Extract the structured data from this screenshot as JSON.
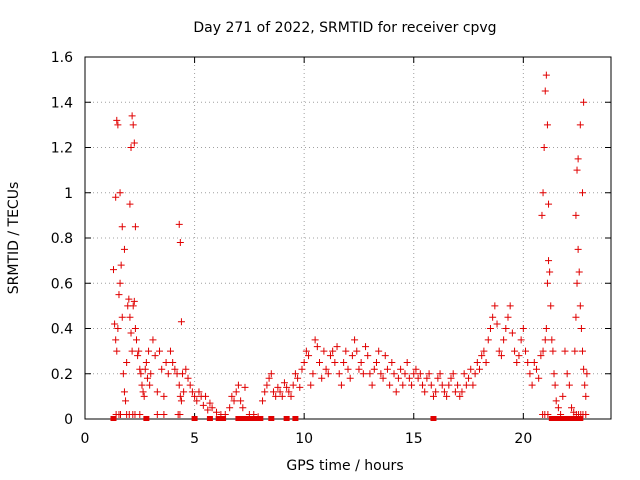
{
  "chart_data": {
    "type": "scatter",
    "title": "Day 271 of 2022, SRMTID for receiver cpvg",
    "xlabel": "GPS time / hours",
    "ylabel": "SRMTID / TECUs",
    "xlim": [
      0,
      24
    ],
    "ylim": [
      0,
      1.6
    ],
    "xticks": [
      0,
      5,
      10,
      15,
      20
    ],
    "xtick_labels": [
      "0",
      "5",
      "10",
      "15",
      "20"
    ],
    "yticks": [
      0,
      0.2,
      0.4,
      0.6,
      0.8,
      1.0,
      1.2,
      1.4,
      1.6
    ],
    "ytick_labels": [
      "0",
      "0.2",
      "0.4",
      "0.6",
      "0.8",
      "1",
      "1.2",
      "1.4",
      "1.6"
    ],
    "grid": true,
    "marker": "+",
    "color": "#e00000",
    "series": [
      {
        "name": "SRMTID",
        "x": [
          1.3,
          1.35,
          1.4,
          1.45,
          1.5,
          1.55,
          1.6,
          1.65,
          1.7,
          1.75,
          1.8,
          1.85,
          1.9,
          1.95,
          2.0,
          2.05,
          2.1,
          2.15,
          2.2,
          2.25,
          2.3,
          2.35,
          2.4,
          2.45,
          2.5,
          2.55,
          2.6,
          2.65,
          2.7,
          2.75,
          2.8,
          2.85,
          2.9,
          2.95,
          3.0,
          3.1,
          3.2,
          3.3,
          3.4,
          3.5,
          3.6,
          3.7,
          3.8,
          3.9,
          4.0,
          4.1,
          4.2,
          4.3,
          4.35,
          4.4,
          4.45,
          4.5,
          4.6,
          4.7,
          4.8,
          4.9,
          5.0,
          5.1,
          5.2,
          5.3,
          5.4,
          5.5,
          5.6,
          5.7,
          5.8,
          6.0,
          6.2,
          6.4,
          6.6,
          6.7,
          6.8,
          6.9,
          7.0,
          7.1,
          7.2,
          7.3,
          7.5,
          7.7,
          7.9,
          8.1,
          8.2,
          8.3,
          8.4,
          8.5,
          8.6,
          8.7,
          8.8,
          8.9,
          9.0,
          9.1,
          9.2,
          9.3,
          9.4,
          9.5,
          9.6,
          9.7,
          9.8,
          9.9,
          10.0,
          10.1,
          10.2,
          10.3,
          10.4,
          10.5,
          10.6,
          10.7,
          10.8,
          10.9,
          11.0,
          11.1,
          11.2,
          11.3,
          11.4,
          11.5,
          11.6,
          11.7,
          11.8,
          11.9,
          12.0,
          12.1,
          12.2,
          12.3,
          12.4,
          12.5,
          12.6,
          12.7,
          12.8,
          12.9,
          13.0,
          13.1,
          13.2,
          13.3,
          13.4,
          13.5,
          13.6,
          13.7,
          13.8,
          13.9,
          14.0,
          14.1,
          14.2,
          14.3,
          14.4,
          14.5,
          14.6,
          14.7,
          14.8,
          14.9,
          15.0,
          15.1,
          15.2,
          15.3,
          15.4,
          15.5,
          15.6,
          15.7,
          15.8,
          15.9,
          16.0,
          16.1,
          16.2,
          16.3,
          16.4,
          16.5,
          16.6,
          16.7,
          16.8,
          16.9,
          17.0,
          17.1,
          17.2,
          17.3,
          17.4,
          17.5,
          17.6,
          17.7,
          17.8,
          17.9,
          18.0,
          18.1,
          18.2,
          18.3,
          18.4,
          18.5,
          18.6,
          18.7,
          18.8,
          18.9,
          19.0,
          19.1,
          19.2,
          19.3,
          19.4,
          19.5,
          19.6,
          19.7,
          19.8,
          19.9,
          20.0,
          20.1,
          20.2,
          20.3,
          20.4,
          20.5,
          20.6,
          20.7,
          20.8,
          20.9,
          21.0,
          21.05,
          21.1,
          21.15,
          21.2,
          21.25,
          21.3,
          21.35,
          21.4,
          21.45,
          21.5,
          21.6,
          21.7,
          21.8,
          21.9,
          22.0,
          22.1,
          22.2,
          22.3,
          22.35,
          22.4,
          22.45,
          22.5,
          22.55,
          22.6,
          22.65,
          22.7,
          22.75,
          22.8,
          22.85,
          22.9,
          1.4,
          1.45,
          1.5,
          1.6,
          1.7,
          1.8,
          2.05,
          2.1,
          2.15,
          2.2,
          2.25,
          2.3,
          4.3,
          4.35,
          4.4,
          20.85,
          20.9,
          20.95,
          21.0,
          21.05,
          21.1,
          21.15,
          22.4,
          22.45,
          22.5,
          22.6,
          22.7,
          22.75,
          1.42,
          1.55,
          1.62,
          1.9,
          2.02,
          2.18,
          2.28,
          2.5,
          3.3,
          3.6,
          4.25,
          4.33,
          20.88,
          20.98,
          21.12,
          22.42,
          22.52,
          22.62,
          22.72,
          22.85
        ],
        "y": [
          0.66,
          0.42,
          0.35,
          0.3,
          0.4,
          0.55,
          0.6,
          0.68,
          0.45,
          0.2,
          0.12,
          0.08,
          0.25,
          0.5,
          0.53,
          0.45,
          0.38,
          0.3,
          0.5,
          0.52,
          0.4,
          0.35,
          0.28,
          0.3,
          0.22,
          0.2,
          0.15,
          0.12,
          0.1,
          0.22,
          0.25,
          0.18,
          0.3,
          0.15,
          0.2,
          0.35,
          0.28,
          0.12,
          0.3,
          0.22,
          0.1,
          0.25,
          0.2,
          0.3,
          0.25,
          0.22,
          0.2,
          0.15,
          0.1,
          0.08,
          0.2,
          0.12,
          0.22,
          0.18,
          0.15,
          0.12,
          0.1,
          0.08,
          0.12,
          0.1,
          0.06,
          0.1,
          0.04,
          0.07,
          0.05,
          0.03,
          0.02,
          0.02,
          0.05,
          0.1,
          0.08,
          0.12,
          0.15,
          0.08,
          0.05,
          0.14,
          0.02,
          0.02,
          0.01,
          0.08,
          0.12,
          0.15,
          0.18,
          0.2,
          0.12,
          0.1,
          0.14,
          0.12,
          0.1,
          0.16,
          0.14,
          0.12,
          0.1,
          0.15,
          0.2,
          0.18,
          0.14,
          0.22,
          0.25,
          0.3,
          0.28,
          0.15,
          0.2,
          0.35,
          0.32,
          0.25,
          0.18,
          0.3,
          0.22,
          0.2,
          0.28,
          0.3,
          0.25,
          0.32,
          0.2,
          0.15,
          0.25,
          0.3,
          0.22,
          0.18,
          0.28,
          0.35,
          0.3,
          0.22,
          0.25,
          0.2,
          0.32,
          0.28,
          0.2,
          0.15,
          0.22,
          0.25,
          0.3,
          0.2,
          0.18,
          0.28,
          0.22,
          0.15,
          0.25,
          0.2,
          0.12,
          0.18,
          0.22,
          0.15,
          0.2,
          0.25,
          0.18,
          0.15,
          0.2,
          0.22,
          0.18,
          0.2,
          0.15,
          0.12,
          0.18,
          0.2,
          0.15,
          0.1,
          0.12,
          0.18,
          0.2,
          0.15,
          0.12,
          0.1,
          0.15,
          0.18,
          0.2,
          0.12,
          0.15,
          0.1,
          0.12,
          0.2,
          0.15,
          0.18,
          0.22,
          0.15,
          0.2,
          0.25,
          0.22,
          0.28,
          0.3,
          0.25,
          0.35,
          0.4,
          0.45,
          0.5,
          0.42,
          0.3,
          0.28,
          0.35,
          0.4,
          0.45,
          0.5,
          0.38,
          0.3,
          0.25,
          0.28,
          0.35,
          0.4,
          0.3,
          0.25,
          0.2,
          0.15,
          0.25,
          0.22,
          0.18,
          0.28,
          0.3,
          0.35,
          0.4,
          0.6,
          0.7,
          0.65,
          0.5,
          0.35,
          0.3,
          0.2,
          0.15,
          0.08,
          0.05,
          0.02,
          0.1,
          0.3,
          0.2,
          0.15,
          0.05,
          0.03,
          0.3,
          0.45,
          0.6,
          0.75,
          0.65,
          0.5,
          0.4,
          0.3,
          0.22,
          0.15,
          0.1,
          0.2,
          0.98,
          1.32,
          1.3,
          1.0,
          0.85,
          0.75,
          0.95,
          1.2,
          1.34,
          1.3,
          1.22,
          0.85,
          0.86,
          0.78,
          0.43,
          0.9,
          1.0,
          1.2,
          1.45,
          1.52,
          1.3,
          0.95,
          0.9,
          1.1,
          1.15,
          1.3,
          1.0,
          1.4,
          0.02,
          0.02,
          0.02,
          0.02,
          0.02,
          0.02,
          0.02,
          0.02,
          0.02,
          0.02,
          0.02,
          0.02,
          0.02,
          0.02,
          0.02,
          0.02,
          0.02,
          0.02,
          0.02,
          0.02
        ]
      }
    ],
    "zero_markers_x": [
      1.3,
      2.8,
      5.0,
      5.7,
      6.1,
      6.3,
      7.0,
      7.1,
      7.2,
      7.3,
      7.4,
      7.5,
      7.6,
      7.7,
      7.8,
      8.0,
      8.5,
      9.2,
      9.6,
      15.9,
      21.3,
      21.5,
      21.6,
      21.7,
      21.8,
      21.9,
      22.0,
      22.1,
      22.2,
      22.4,
      22.5,
      22.6
    ]
  }
}
